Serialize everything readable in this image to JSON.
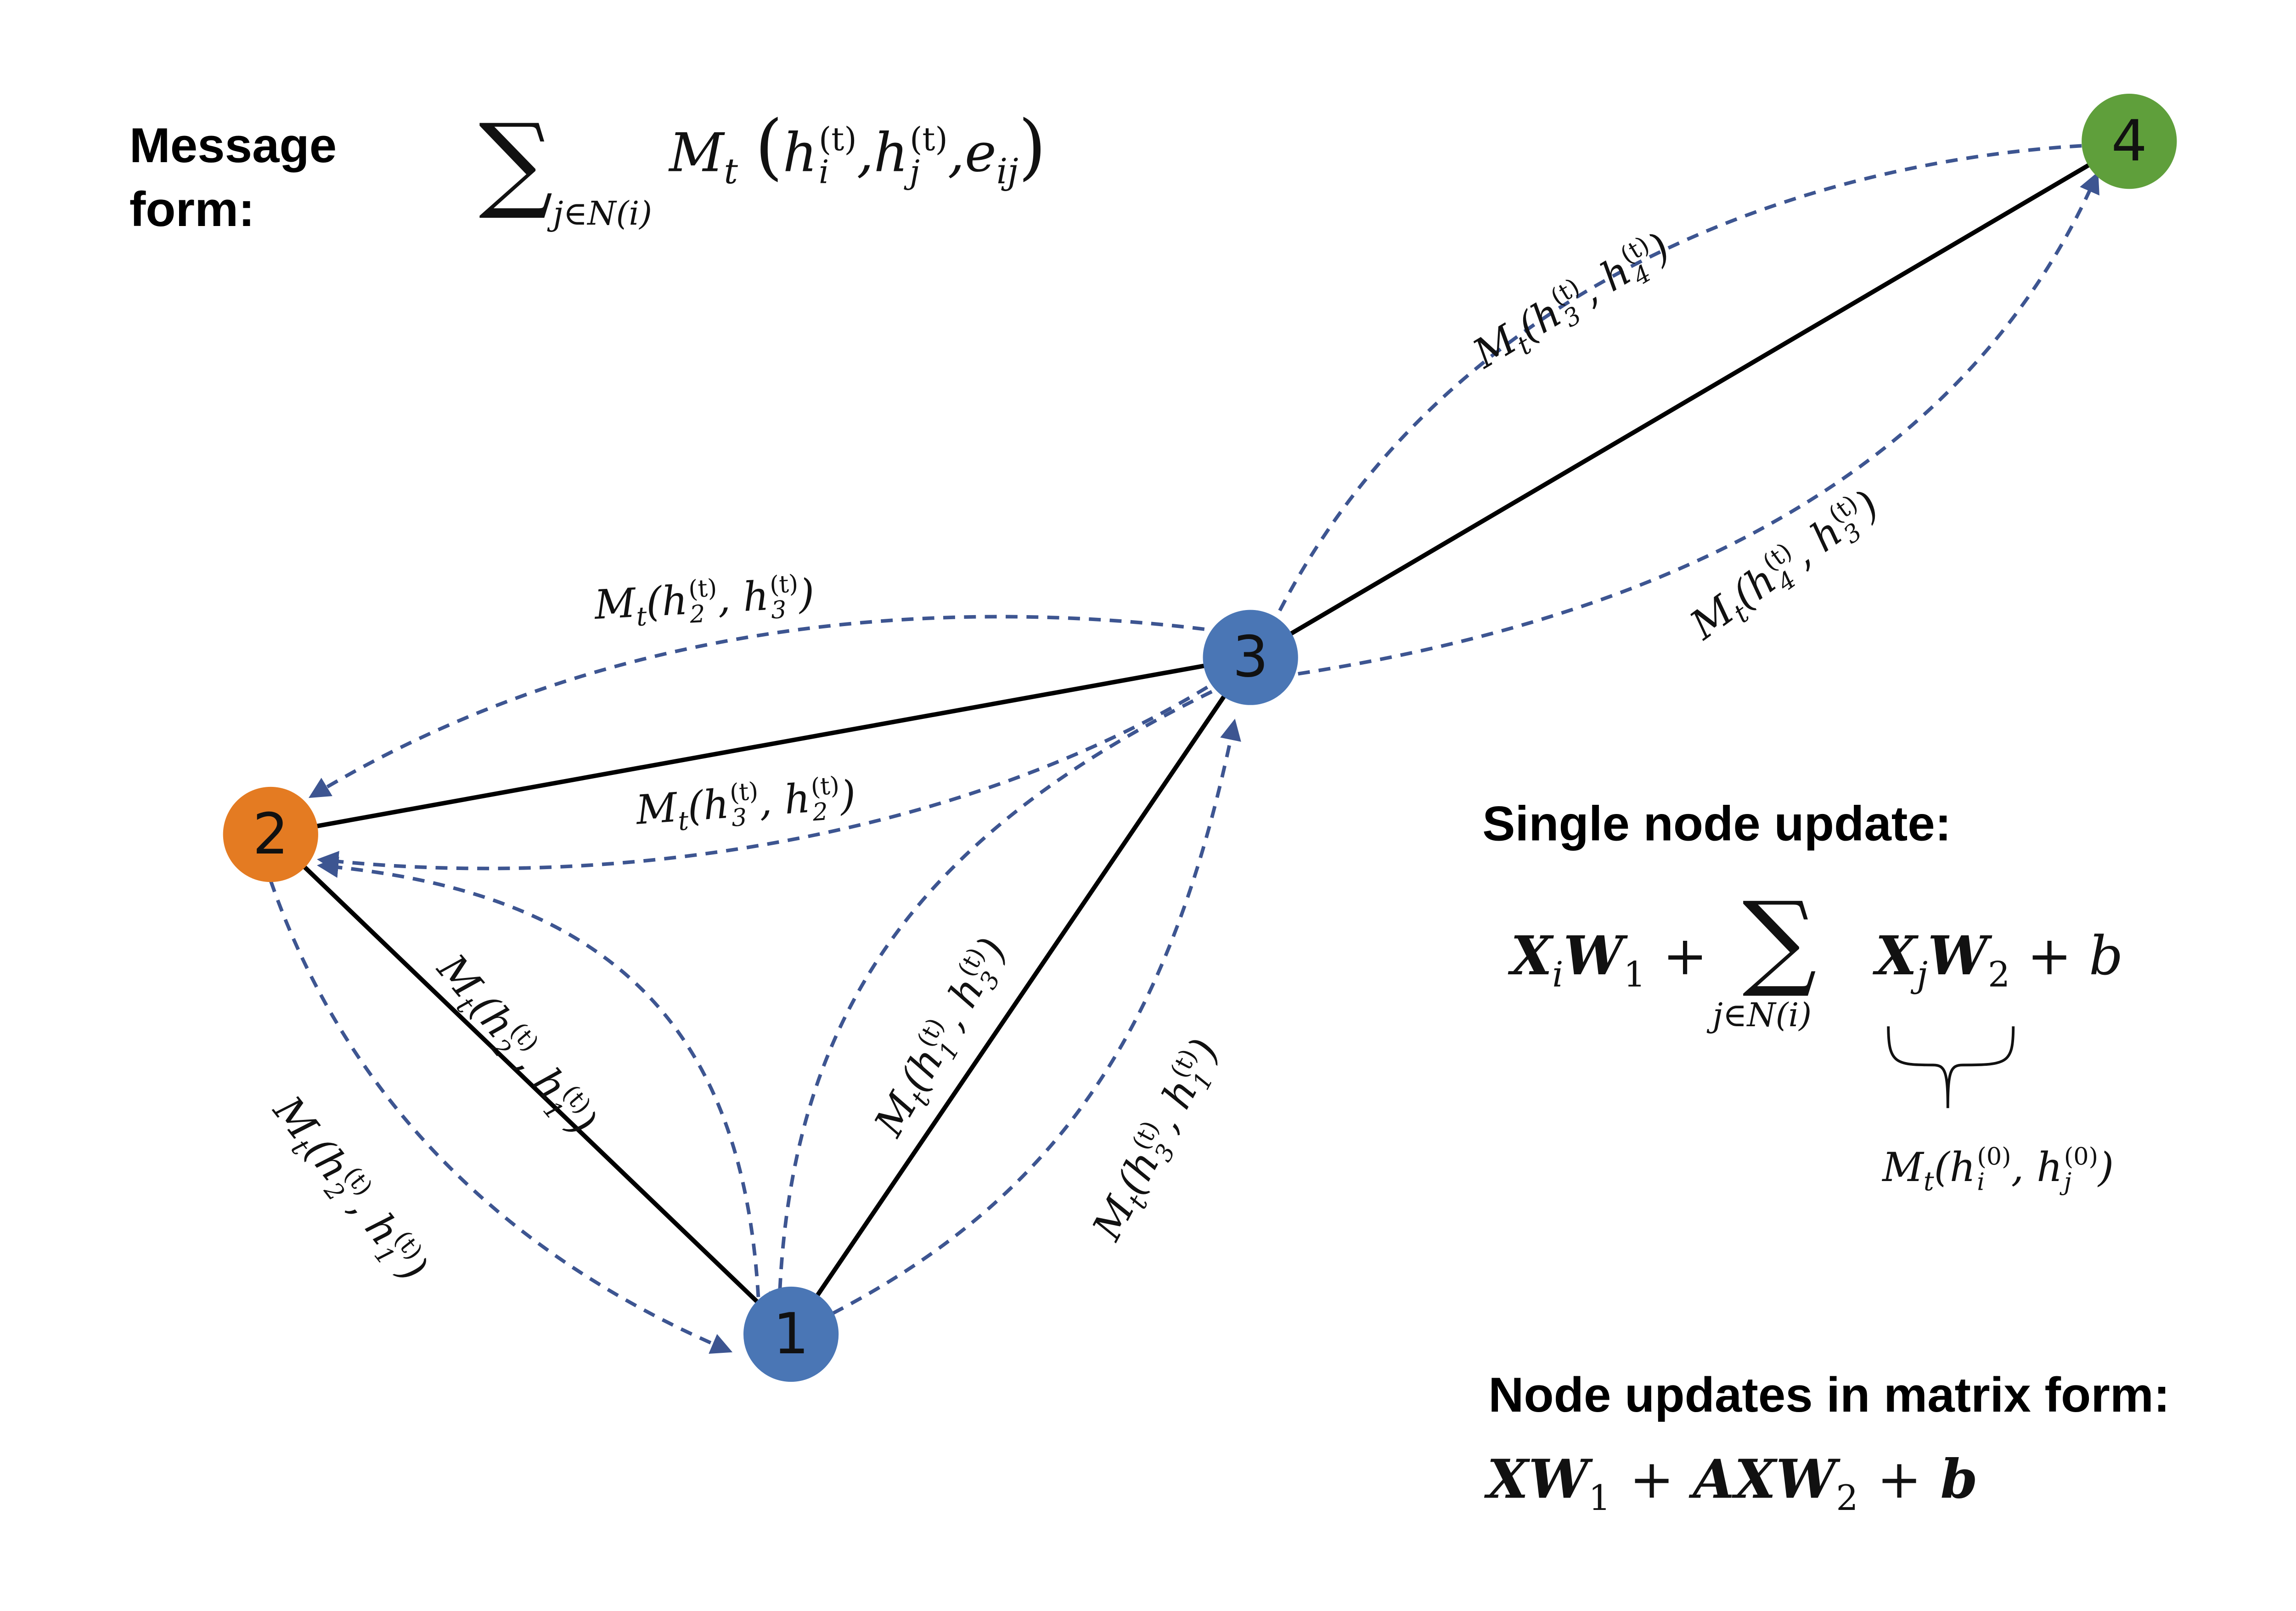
{
  "colors": {
    "node_blue": "#4a76b5",
    "node_orange": "#e47b22",
    "node_green": "#5f9f3b",
    "edge": "#000000",
    "message_arrow": "#3d5591"
  },
  "nodes": [
    {
      "id": "1"
    },
    {
      "id": "2"
    },
    {
      "id": "3"
    },
    {
      "id": "4"
    }
  ],
  "message_form": {
    "heading_line1": "Message",
    "heading_line2": "form:",
    "sum": "∑",
    "sum_sub": "j∈N(i)",
    "fn": "M",
    "fn_sub": "t",
    "open": "(",
    "h1": "h",
    "h1_sub": "i",
    "sup": "(t)",
    "comma1": ",",
    "h2": "h",
    "h2_sub": "j",
    "comma2": ",",
    "e": "e",
    "e_sub": "ij",
    "close": ")"
  },
  "messages": [
    {
      "fn": "M",
      "fn_sub": "t",
      "a": "2",
      "b": "3",
      "sup": "(t)"
    },
    {
      "fn": "M",
      "fn_sub": "t",
      "a": "3",
      "b": "2",
      "sup": "(t)"
    },
    {
      "fn": "M",
      "fn_sub": "t",
      "a": "3",
      "b": "4",
      "sup": "(t)"
    },
    {
      "fn": "M",
      "fn_sub": "t",
      "a": "4",
      "b": "3",
      "sup": "(t)"
    },
    {
      "fn": "M",
      "fn_sub": "t",
      "a": "2",
      "b": "1",
      "sup": "(t)"
    },
    {
      "fn": "M",
      "fn_sub": "t",
      "a": "2",
      "b": "1",
      "sup": "(t)"
    },
    {
      "fn": "M",
      "fn_sub": "t",
      "a": "1",
      "b": "3",
      "sup": "(t)"
    },
    {
      "fn": "M",
      "fn_sub": "t",
      "a": "3",
      "b": "1",
      "sup": "(t)"
    }
  ],
  "single_update": {
    "heading": "Single node update:",
    "x1": "X",
    "x1_sub": "i",
    "w1": "W",
    "w1_sub": "1",
    "plus1": "+",
    "sum": "∑",
    "sum_sub": "j∈N(i)",
    "x2": "X",
    "x2_sub": "j",
    "w2": "W",
    "w2_sub": "2",
    "plus2": "+",
    "b": "b",
    "brace_label": {
      "fn": "M",
      "fn_sub": "t",
      "h1": "h",
      "h1_sub": "i",
      "h2": "h",
      "h2_sub": "j",
      "sup": "(0)"
    }
  },
  "matrix_update": {
    "heading": "Node updates in matrix form:",
    "xw": "XW",
    "w1_sub": "1",
    "plus1": "+",
    "axw": "AXW",
    "w2_sub": "2",
    "plus2": "+",
    "b": "b"
  }
}
